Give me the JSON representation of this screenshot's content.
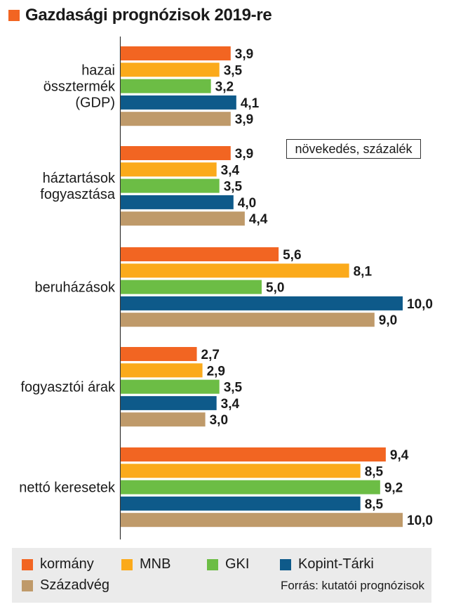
{
  "title": "Gazdasági prognózisok 2019-re",
  "unit_label": "növekedés, százalék",
  "source": "Forrás: kutatói prognózisok",
  "colors": {
    "kormany": "#f26522",
    "mnb": "#fbaa1b",
    "gki": "#6cbd45",
    "kopint": "#0e5a8a",
    "szazadveg": "#bf9a6a"
  },
  "chart_data": {
    "type": "bar",
    "orientation": "horizontal",
    "categories": [
      [
        "hazai",
        "össztermék",
        "(GDP)"
      ],
      [
        "háztartások",
        "fogyasztása"
      ],
      [
        "beruházások"
      ],
      [
        "fogyasztói árak"
      ],
      [
        "nettó keresetek"
      ]
    ],
    "series": [
      {
        "name": "kormány",
        "values": [
          3.9,
          3.9,
          5.6,
          2.7,
          9.4
        ],
        "labels": [
          "3,9",
          "3,9",
          "5,6",
          "2,7",
          "9,4"
        ]
      },
      {
        "name": "MNB",
        "values": [
          3.5,
          3.4,
          8.1,
          2.9,
          8.5
        ],
        "labels": [
          "3,5",
          "3,4",
          "8,1",
          "2,9",
          "8,5"
        ]
      },
      {
        "name": "GKI",
        "values": [
          3.2,
          3.5,
          5.0,
          3.5,
          9.2
        ],
        "labels": [
          "3,2",
          "3,5",
          "5,0",
          "3,5",
          "9,2"
        ]
      },
      {
        "name": "Kopint-Tárki",
        "values": [
          4.1,
          4.0,
          10.0,
          3.4,
          8.5
        ],
        "labels": [
          "4,1",
          "4,0",
          "10,0",
          "3,4",
          "8,5"
        ]
      },
      {
        "name": "Századvég",
        "values": [
          3.9,
          4.4,
          9.0,
          3.0,
          10.0
        ],
        "labels": [
          "3,9",
          "4,4",
          "9,0",
          "3,0",
          "10,0"
        ]
      }
    ],
    "xlim": [
      0,
      10
    ],
    "grid": false,
    "legend_position": "bottom"
  }
}
